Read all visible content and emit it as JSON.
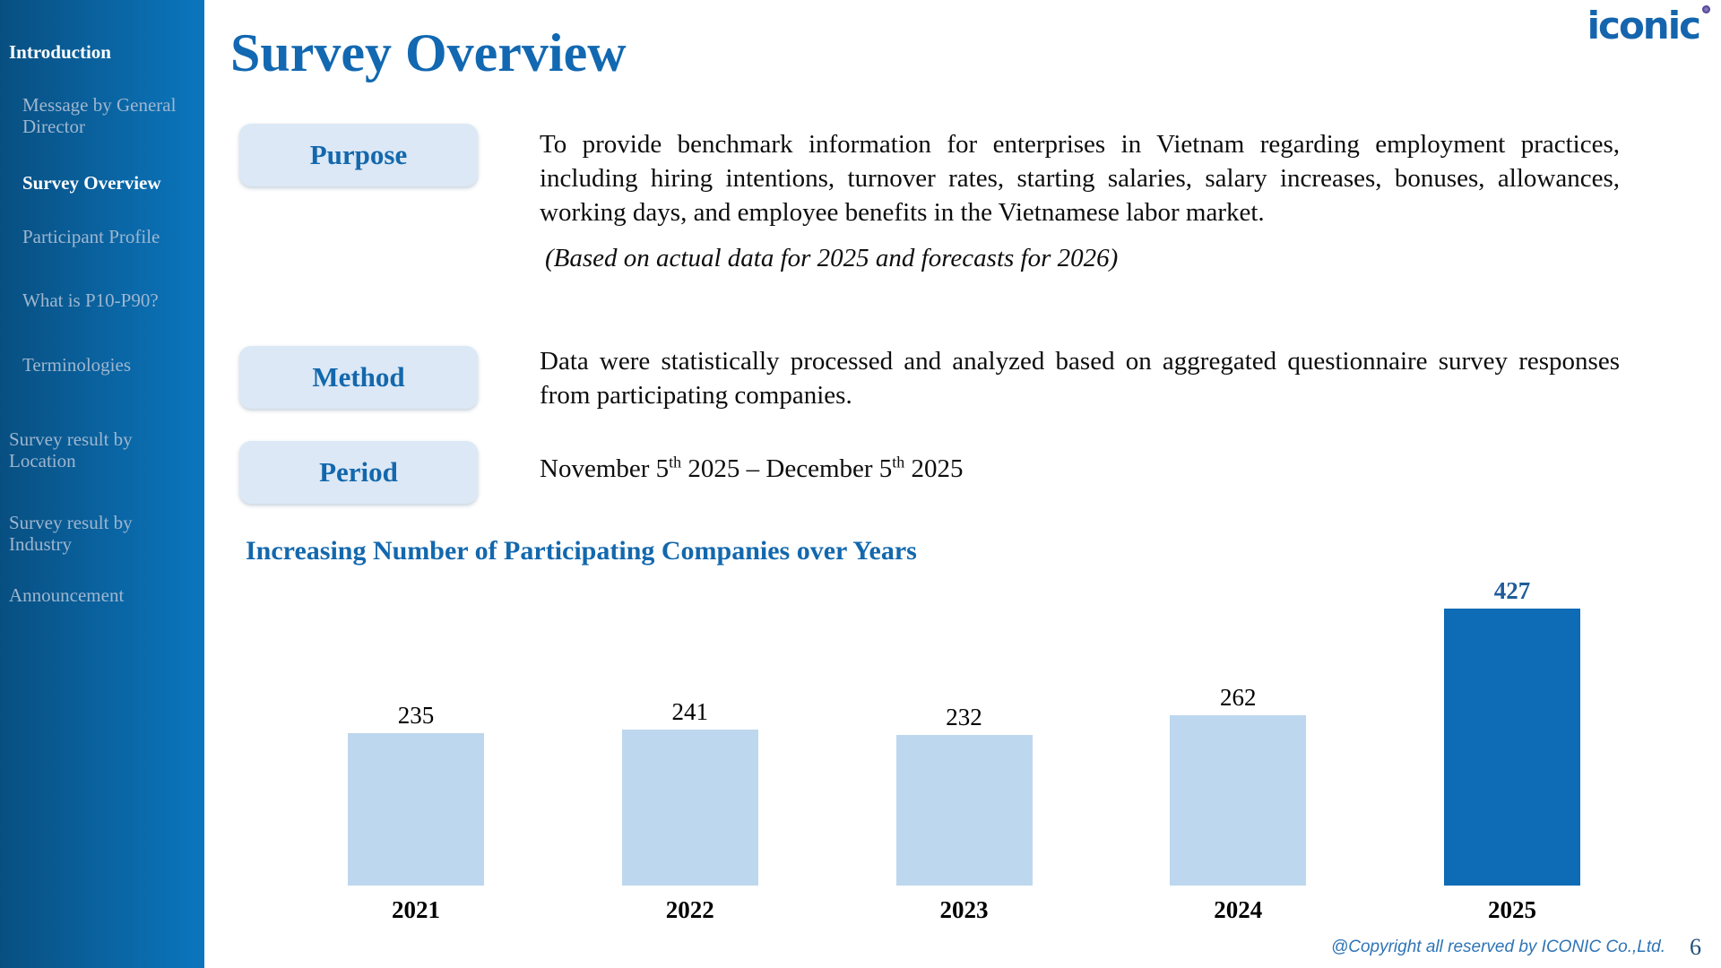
{
  "header": {
    "title": "Survey Overview",
    "logo_text": "iconic"
  },
  "sidebar": {
    "items": [
      {
        "label": "Introduction",
        "level": "main",
        "active": true
      },
      {
        "label": "Message by General Director",
        "level": "sub",
        "active": false
      },
      {
        "label": "Survey Overview",
        "level": "sub",
        "active": true
      },
      {
        "label": "Participant Profile",
        "level": "sub",
        "active": false
      },
      {
        "label": "What is P10-P90?",
        "level": "sub",
        "active": false
      },
      {
        "label": "Terminologies",
        "level": "sub",
        "active": false
      },
      {
        "label": "Survey result by Location",
        "level": "main",
        "active": false
      },
      {
        "label": "Survey result by Industry",
        "level": "main",
        "active": false
      },
      {
        "label": "Announcement",
        "level": "main",
        "active": false
      }
    ]
  },
  "sections": {
    "purpose": {
      "label": "Purpose",
      "text": "To provide benchmark information for enterprises in Vietnam regarding employment practices, including hiring intentions, turnover rates, starting salaries, salary increases, bonuses, allowances, working days, and employee benefits in the Vietnamese labor market.",
      "note": "(Based on actual data for 2025 and forecasts for 2026)"
    },
    "method": {
      "label": "Method",
      "text": "Data were statistically processed and analyzed based on aggregated questionnaire survey responses from participating companies."
    },
    "period": {
      "label": "Period",
      "part1": "November 5",
      "sup1": "th",
      "part2": " 2025 – December 5",
      "sup2": "th",
      "part3": " 2025"
    }
  },
  "chart_data": {
    "type": "bar",
    "title": "Increasing Number of Participating Companies over Years",
    "categories": [
      "2021",
      "2022",
      "2023",
      "2024",
      "2025"
    ],
    "values": [
      235,
      241,
      232,
      262,
      427
    ],
    "bar_colors": [
      "#BDD7EE",
      "#BDD7EE",
      "#BDD7EE",
      "#BDD7EE",
      "#0E6BB6"
    ],
    "value_label_colors": [
      "#000000",
      "#000000",
      "#000000",
      "#000000",
      "#1F5C99"
    ],
    "value_label_bold": [
      false,
      false,
      false,
      false,
      true
    ],
    "xlabel": "",
    "ylabel": "",
    "ylim": [
      0,
      450
    ],
    "grid": false,
    "legend": "none",
    "highlight_category": "2025"
  },
  "footer": {
    "copyright": "@Copyright all reserved by ICONIC Co.,Ltd.",
    "page_number": "6"
  },
  "colors": {
    "accent_blue": "#1368AD",
    "title_blue": "#1268B1",
    "sidebar_gradient_left": "#084F81",
    "sidebar_gradient_right": "#0B76BE",
    "sidebar_muted_text": "#9FB6CF",
    "sidebar_active_text": "#FFFFFF",
    "label_box_bg": "#DCE8F5",
    "bar_light": "#BDD7EE",
    "bar_dark": "#0E6BB6",
    "footer_text": "#2E74B5",
    "page_number_color": "#1F4E79",
    "logo_blue": "#1565AE",
    "logo_dot_purple": "#4A3C92"
  }
}
